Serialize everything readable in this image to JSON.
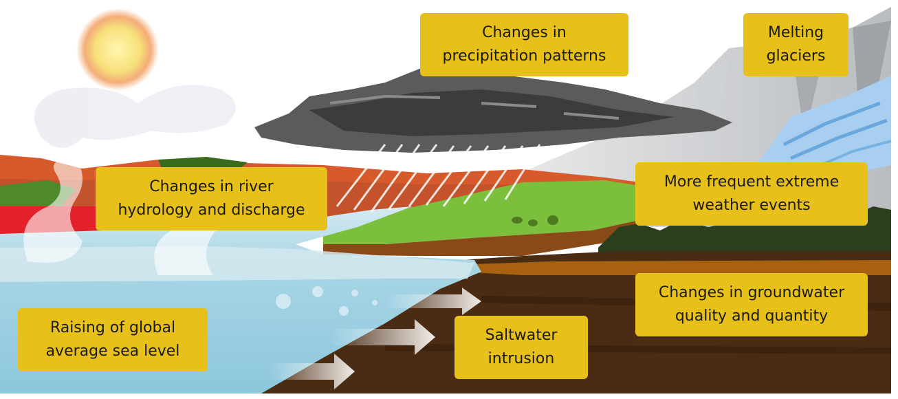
{
  "labels": {
    "precipitation": {
      "line1": "Changes in",
      "line2": "precipitation patterns"
    },
    "glaciers": {
      "line1": "Melting",
      "line2": "glaciers"
    },
    "river": {
      "line1": "Changes in river",
      "line2": "hydrology and discharge"
    },
    "extreme_weather": {
      "line1": "More frequent extreme",
      "line2": "weather events"
    },
    "groundwater": {
      "line1": "Changes in groundwater",
      "line2": "quality and quantity"
    },
    "sea_level": {
      "line1": "Raising of global",
      "line2": "average sea level"
    },
    "saltwater": {
      "line1": "Saltwater",
      "line2": "intrusion"
    }
  },
  "colors": {
    "label_background": "#e8c01a",
    "label_text": "#1b1b1b",
    "sea": "#9fd0e0",
    "soil": "#4a2c14",
    "cloud": "#5b5b5b",
    "sun": "#f6e27a",
    "grass": "#7bbf3c",
    "glacier": "#9ec9ee"
  }
}
